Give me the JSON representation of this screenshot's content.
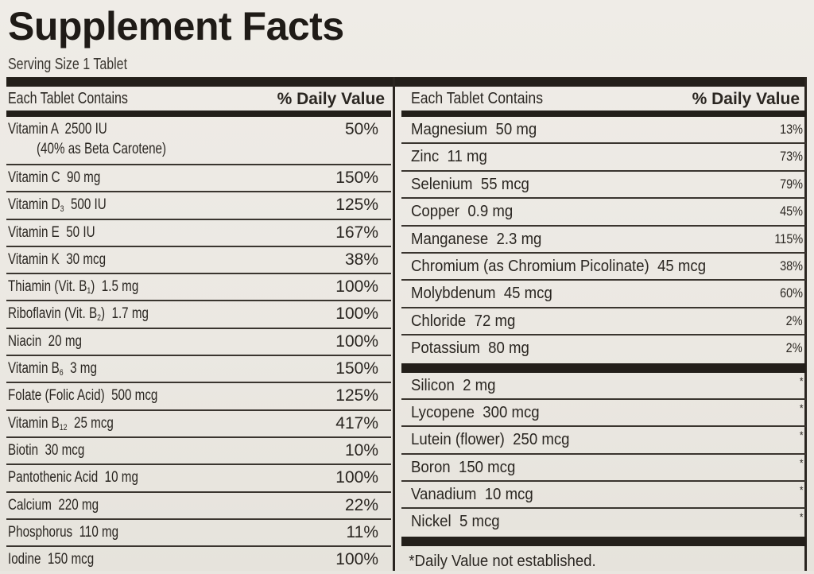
{
  "title": "Supplement Facts",
  "serving_size": "Serving Size 1 Tablet",
  "left_column": {
    "header_left_prefix": "Each Tablet ",
    "header_left_bold": "Contains",
    "header_right": "% Daily Value",
    "rows": [
      {
        "pre": "Vitamin A  2500 IU",
        "sub": "",
        "post": "",
        "second_line": "(40% as Beta Carotene)",
        "dv": "50%"
      },
      {
        "pre": "Vitamin C  90 mg",
        "sub": "",
        "post": "",
        "dv": "150%"
      },
      {
        "pre": "Vitamin D",
        "sub": "3",
        "post": "  500 IU",
        "dv": "125%"
      },
      {
        "pre": "Vitamin E  50 IU",
        "sub": "",
        "post": "",
        "dv": "167%"
      },
      {
        "pre": "Vitamin K  30 mcg",
        "sub": "",
        "post": "",
        "dv": "38%"
      },
      {
        "pre": "Thiamin (Vit. B",
        "sub": "1",
        "post": ")  1.5 mg",
        "dv": "100%"
      },
      {
        "pre": "Riboflavin (Vit. B",
        "sub": "2",
        "post": ")  1.7 mg",
        "dv": "100%"
      },
      {
        "pre": "Niacin  20 mg",
        "sub": "",
        "post": "",
        "dv": "100%"
      },
      {
        "pre": "Vitamin B",
        "sub": "6",
        "post": "  3 mg",
        "dv": "150%"
      },
      {
        "pre": "Folate (Folic Acid)  500 mcg",
        "sub": "",
        "post": "",
        "dv": "125%"
      },
      {
        "pre": "Vitamin B",
        "sub": "12",
        "post": "  25 mcg",
        "dv": "417%"
      },
      {
        "pre": "Biotin  30 mcg",
        "sub": "",
        "post": "",
        "dv": "10%"
      },
      {
        "pre": "Pantothenic Acid  10 mg",
        "sub": "",
        "post": "",
        "dv": "100%"
      },
      {
        "pre": "Calcium  220 mg",
        "sub": "",
        "post": "",
        "dv": "22%"
      },
      {
        "pre": "Phosphorus  110 mg",
        "sub": "",
        "post": "",
        "dv": "11%"
      },
      {
        "pre": "Iodine  150 mcg",
        "sub": "",
        "post": "",
        "dv": "100%"
      }
    ]
  },
  "right_column": {
    "header_left": "Each Tablet Contains",
    "header_right": "% Daily Value",
    "rows": [
      {
        "name": "Magnesium  50 mg",
        "dv": "13%"
      },
      {
        "name": "Zinc  11 mg",
        "dv": "73%"
      },
      {
        "name": "Selenium  55 mcg",
        "dv": "79%"
      },
      {
        "name": "Copper  0.9 mg",
        "dv": "45%"
      },
      {
        "name": "Manganese  2.3 mg",
        "dv": "115%"
      },
      {
        "name": "Chromium (as Chromium Picolinate)  45 mcg",
        "dv": "38%"
      },
      {
        "name": "Molybdenum  45 mcg",
        "dv": "60%"
      },
      {
        "name": "Chloride  72 mg",
        "dv": "2%"
      },
      {
        "name": "Potassium  80 mg",
        "dv": "2%"
      }
    ],
    "rows_no_dv": [
      {
        "name": "Silicon  2 mg",
        "dv": "*"
      },
      {
        "name": "Lycopene  300 mcg",
        "dv": "*"
      },
      {
        "name": "Lutein (flower)  250 mcg",
        "dv": "*"
      },
      {
        "name": "Boron  150 mcg",
        "dv": "*"
      },
      {
        "name": "Vanadium  10 mcg",
        "dv": "*"
      },
      {
        "name": "Nickel  5 mcg",
        "dv": "*"
      }
    ],
    "footnote": "*Daily Value not established."
  }
}
